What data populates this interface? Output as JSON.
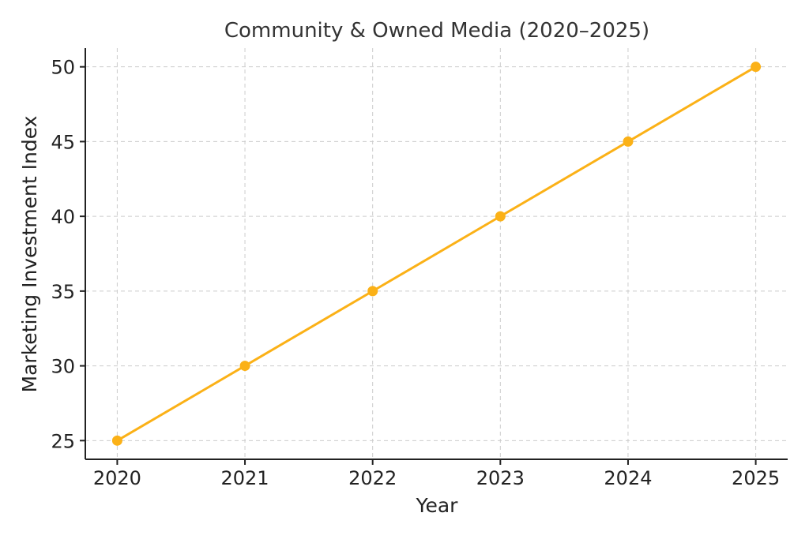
{
  "chart_data": {
    "type": "line",
    "title": "Community & Owned Media (2020–2025)",
    "xlabel": "Year",
    "ylabel": "Marketing Investment Index",
    "x": [
      2020,
      2021,
      2022,
      2023,
      2024,
      2025
    ],
    "xticks": [
      "2020",
      "2021",
      "2022",
      "2023",
      "2024",
      "2025"
    ],
    "yticks": [
      25,
      30,
      35,
      40,
      45,
      50
    ],
    "xlim": [
      2019.75,
      2025.25
    ],
    "ylim": [
      23.75,
      51.25
    ],
    "series": [
      {
        "values": [
          25,
          30,
          35,
          40,
          45,
          50
        ],
        "color": "#FBB117"
      }
    ],
    "grid": true,
    "markers": true
  }
}
